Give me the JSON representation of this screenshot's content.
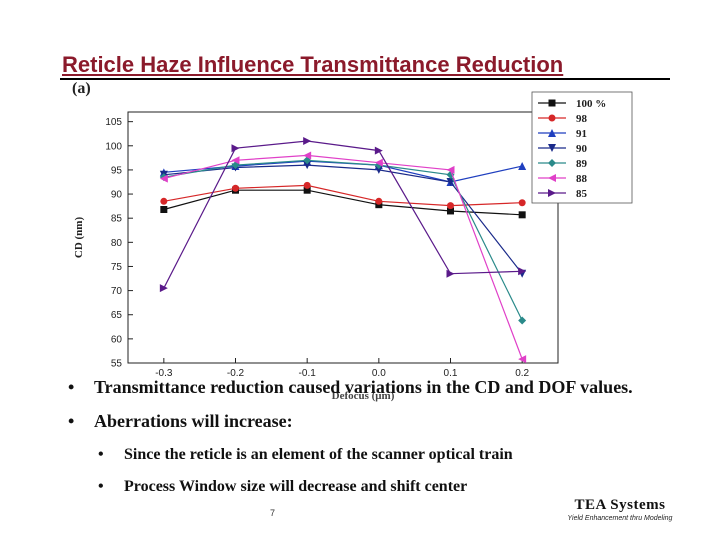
{
  "slide": {
    "title": "Reticle Haze Influence Transmittance Reduction",
    "panel_label": "(a)",
    "page_number": "7",
    "brand": {
      "name": "TEA Systems",
      "tagline": "Yield Enhancement thru Modeling"
    }
  },
  "bullets": [
    {
      "text": "Transmittance reduction caused variations in the CD and DOF values."
    },
    {
      "text": "Aberrations will increase:"
    }
  ],
  "sub_bullets": [
    {
      "text": "Since the reticle is an element of the scanner optical train"
    },
    {
      "text": "Process Window size will decrease and shift center"
    }
  ],
  "bullet_glyph": "•",
  "chart_data": {
    "type": "line",
    "title": "",
    "xlabel": "Defocus (μm)",
    "ylabel": "CD (nm)",
    "x": [
      -0.3,
      -0.2,
      -0.1,
      0.0,
      0.1,
      0.2
    ],
    "x_tick_labels": [
      "-0.3",
      "-0.2",
      "-0.1",
      "0.0",
      "0.1",
      "0.2"
    ],
    "xlim": [
      -0.35,
      0.25
    ],
    "y_ticks": [
      55,
      60,
      65,
      70,
      75,
      80,
      85,
      90,
      95,
      100,
      105
    ],
    "y_tick_labels": [
      "55",
      "60",
      "65",
      "70",
      "75",
      "80",
      "85",
      "90",
      "95",
      "100",
      "105"
    ],
    "ylim": [
      55,
      107
    ],
    "grid": false,
    "legend_position": "top-right",
    "series": [
      {
        "name": "100 %",
        "color": "#111111",
        "marker": "square",
        "values": [
          86.8,
          90.8,
          90.8,
          87.8,
          86.5,
          85.7
        ]
      },
      {
        "name": "98",
        "color": "#d62728",
        "marker": "circle",
        "values": [
          88.5,
          91.2,
          91.8,
          88.5,
          87.6,
          88.2
        ]
      },
      {
        "name": "91",
        "color": "#1f3fbf",
        "marker": "triangle-up",
        "values": [
          94.5,
          95.8,
          96.8,
          96.0,
          92.5,
          95.8
        ]
      },
      {
        "name": "90",
        "color": "#1a2a8a",
        "marker": "triangle-down",
        "values": [
          94.0,
          95.5,
          96.0,
          95.0,
          92.5,
          73.5
        ]
      },
      {
        "name": "89",
        "color": "#2a8a8a",
        "marker": "diamond",
        "values": [
          93.5,
          96.0,
          97.0,
          96.0,
          94.0,
          63.8
        ]
      },
      {
        "name": "88",
        "color": "#e040c8",
        "marker": "triangle-left",
        "values": [
          93.2,
          97.0,
          98.0,
          96.5,
          95.0,
          55.8
        ]
      },
      {
        "name": "85",
        "color": "#5a1a8a",
        "marker": "triangle-right",
        "values": [
          70.5,
          99.5,
          101.0,
          99.0,
          73.5,
          74.0
        ]
      }
    ]
  }
}
